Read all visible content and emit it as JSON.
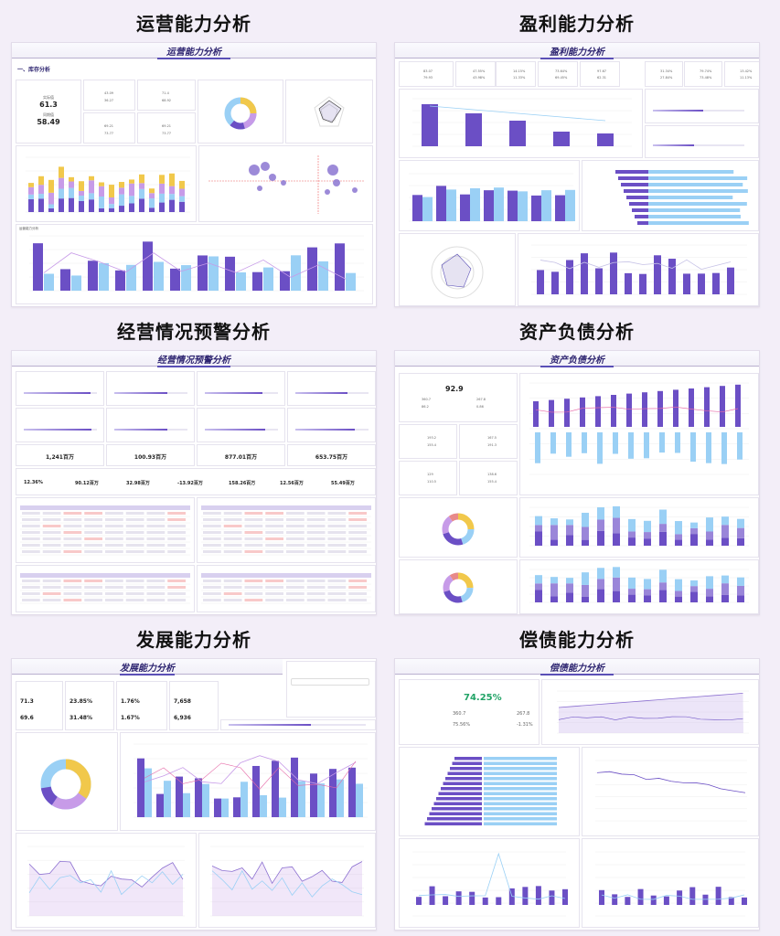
{
  "sections": [
    {
      "title": "运营能力分析",
      "dashboard_title": "运营能力分析"
    },
    {
      "title": "盈利能力分析",
      "dashboard_title": "盈利能力分析"
    },
    {
      "title": "经营情况预警分析",
      "dashboard_title": "经营情况预警分析"
    },
    {
      "title": "资产负债分析",
      "dashboard_title": "资产负债分析"
    },
    {
      "title": "发展能力分析",
      "dashboard_title": "发展能力分析"
    },
    {
      "title": "偿债能力分析",
      "dashboard_title": "偿债能力分析"
    }
  ],
  "operations": {
    "subtitle": "一、库存分析",
    "kpi1": {
      "label1": "实际值",
      "value1": "61.3",
      "label2": "同期值",
      "value2": "58.49"
    },
    "kpi2": {
      "a": "43.09",
      "b": "36.27"
    },
    "kpi3": {
      "a": "71.4",
      "b": "68.92"
    },
    "kpi4": {
      "a": "69.21",
      "b": "73.77"
    },
    "kpi5": {
      "a": "69.21",
      "b": "73.77"
    },
    "chart3_title": "运营能力分析"
  },
  "profit": {
    "kpis": [
      {
        "a": "83.07",
        "b": "79.93"
      },
      {
        "a": "47.55%",
        "b": "43.98%"
      },
      {
        "a": "14.15%",
        "b": "11.33%"
      },
      {
        "a": "73.64%",
        "b": "69.45%"
      },
      {
        "a": "97.67",
        "b": "62.31"
      }
    ],
    "right_kpis": [
      {
        "a": "31.34%",
        "b": "27.84%"
      },
      {
        "a": "79.74%",
        "b": "73.48%"
      },
      {
        "a": "13.42%",
        "b": "11.13%"
      }
    ]
  },
  "warning": {
    "values": [
      "1,241百万",
      "100.93百万",
      "877.01百万",
      "653.75百万"
    ],
    "ratios": [
      "12.36%",
      "90.12百万",
      "32.98百万",
      "-13.92百万",
      "158.26百万",
      "12.56百万",
      "55.49百万"
    ]
  },
  "balance": {
    "net_assets": "92.9",
    "assets": "360.7",
    "liabilities": "267.8",
    "yoy1": "86.2",
    "yoy2": "0.86",
    "r1a": "193.2",
    "r1b": "155.4",
    "r1c": "167.5",
    "r1d": "191.3",
    "r2a": "129",
    "r2b": "110.5",
    "r2c": "138.6",
    "r2d": "155.4"
  },
  "growth": {
    "k1": {
      "a": "71.3",
      "b": "69.6"
    },
    "k2": {
      "a": "23.85%",
      "b": "31.48%"
    },
    "k3": {
      "a": "1.76%",
      "b": "1.67%"
    },
    "k4": {
      "a": "7,658",
      "b": "6,936"
    }
  },
  "solvency": {
    "ratio": "74.25%",
    "assets": "360.7",
    "liabilities": "267.8",
    "yoy": "75.56%",
    "growth": "-1.31%"
  }
}
